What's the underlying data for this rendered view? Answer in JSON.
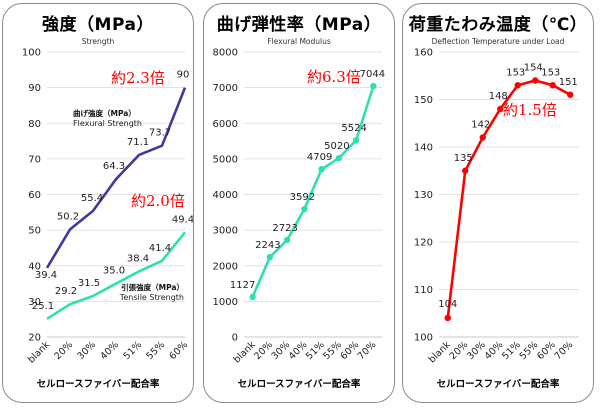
{
  "chart_data": [
    {
      "type": "line",
      "title": "強度（MPa）",
      "subtitle": "Strength",
      "xlabel": "セルロースファイバー配合率",
      "categories": [
        "blank",
        "20%",
        "30%",
        "40%",
        "51%",
        "55%",
        "60%"
      ],
      "ylim": [
        20,
        100
      ],
      "yticks": [
        20,
        30,
        40,
        50,
        60,
        70,
        80,
        90,
        100
      ],
      "grid": true,
      "series": [
        {
          "name": "曲げ強度（MPa） Flexural Strength",
          "name_lines": [
            "曲げ強度（MPa）",
            "Flexural Strength"
          ],
          "color": "#3f3a9e",
          "values": [
            39.4,
            50.2,
            55.4,
            64.3,
            71.1,
            73.7,
            90
          ],
          "labels": [
            "39.4",
            "50.2",
            "55.4",
            "64.3",
            "71.1",
            "73.7",
            "90"
          ]
        },
        {
          "name": "引張強度（MPa） Tensile Strength",
          "name_lines": [
            "引張強度（MPa）",
            "Tensile Strength"
          ],
          "color": "#2ee0b0",
          "values": [
            25.1,
            29.2,
            31.5,
            35.0,
            38.4,
            41.4,
            49.4
          ],
          "labels": [
            "25.1",
            "29.2",
            "31.5",
            "35.0",
            "38.4",
            "41.4",
            "49.4"
          ]
        }
      ],
      "annotations": [
        {
          "text": "約2.3倍",
          "color": "#ff0000"
        },
        {
          "text": "約2.0倍",
          "color": "#ff0000"
        }
      ]
    },
    {
      "type": "line",
      "title": "曲げ弾性率（MPa）",
      "subtitle": "Flexural Modulus",
      "xlabel": "セルロースファイバー配合率",
      "categories": [
        "blank",
        "20%",
        "30%",
        "40%",
        "51%",
        "55%",
        "60%",
        "70%"
      ],
      "ylim": [
        0,
        8000
      ],
      "yticks": [
        0,
        1000,
        2000,
        3000,
        4000,
        5000,
        6000,
        7000,
        8000
      ],
      "grid": true,
      "series": [
        {
          "name": "",
          "color": "#2ee0b0",
          "values": [
            1127,
            2243,
            2723,
            3592,
            4709,
            5020,
            5524,
            7044
          ],
          "labels": [
            "1127",
            "2243",
            "2723",
            "3592",
            "4709",
            "5020",
            "5524",
            "7044"
          ]
        }
      ],
      "annotations": [
        {
          "text": "約6.3倍",
          "color": "#ff0000"
        }
      ]
    },
    {
      "type": "line",
      "title": "荷重たわみ温度（℃）",
      "subtitle": "Deflection Temperature under Load",
      "xlabel": "セルロースファイバー配合率",
      "categories": [
        "blank",
        "20%",
        "30%",
        "40%",
        "51%",
        "55%",
        "60%",
        "70%"
      ],
      "ylim": [
        100,
        160
      ],
      "yticks": [
        100,
        110,
        120,
        130,
        140,
        150,
        160
      ],
      "grid": true,
      "series": [
        {
          "name": "",
          "color": "#ff0000",
          "values": [
            104,
            135,
            142,
            148,
            153,
            154,
            153,
            151
          ],
          "labels": [
            "104",
            "135",
            "142",
            "148",
            "153",
            "154",
            "153",
            "151"
          ]
        }
      ],
      "annotations": [
        {
          "text": "約1.5倍",
          "color": "#ff0000"
        }
      ]
    }
  ]
}
